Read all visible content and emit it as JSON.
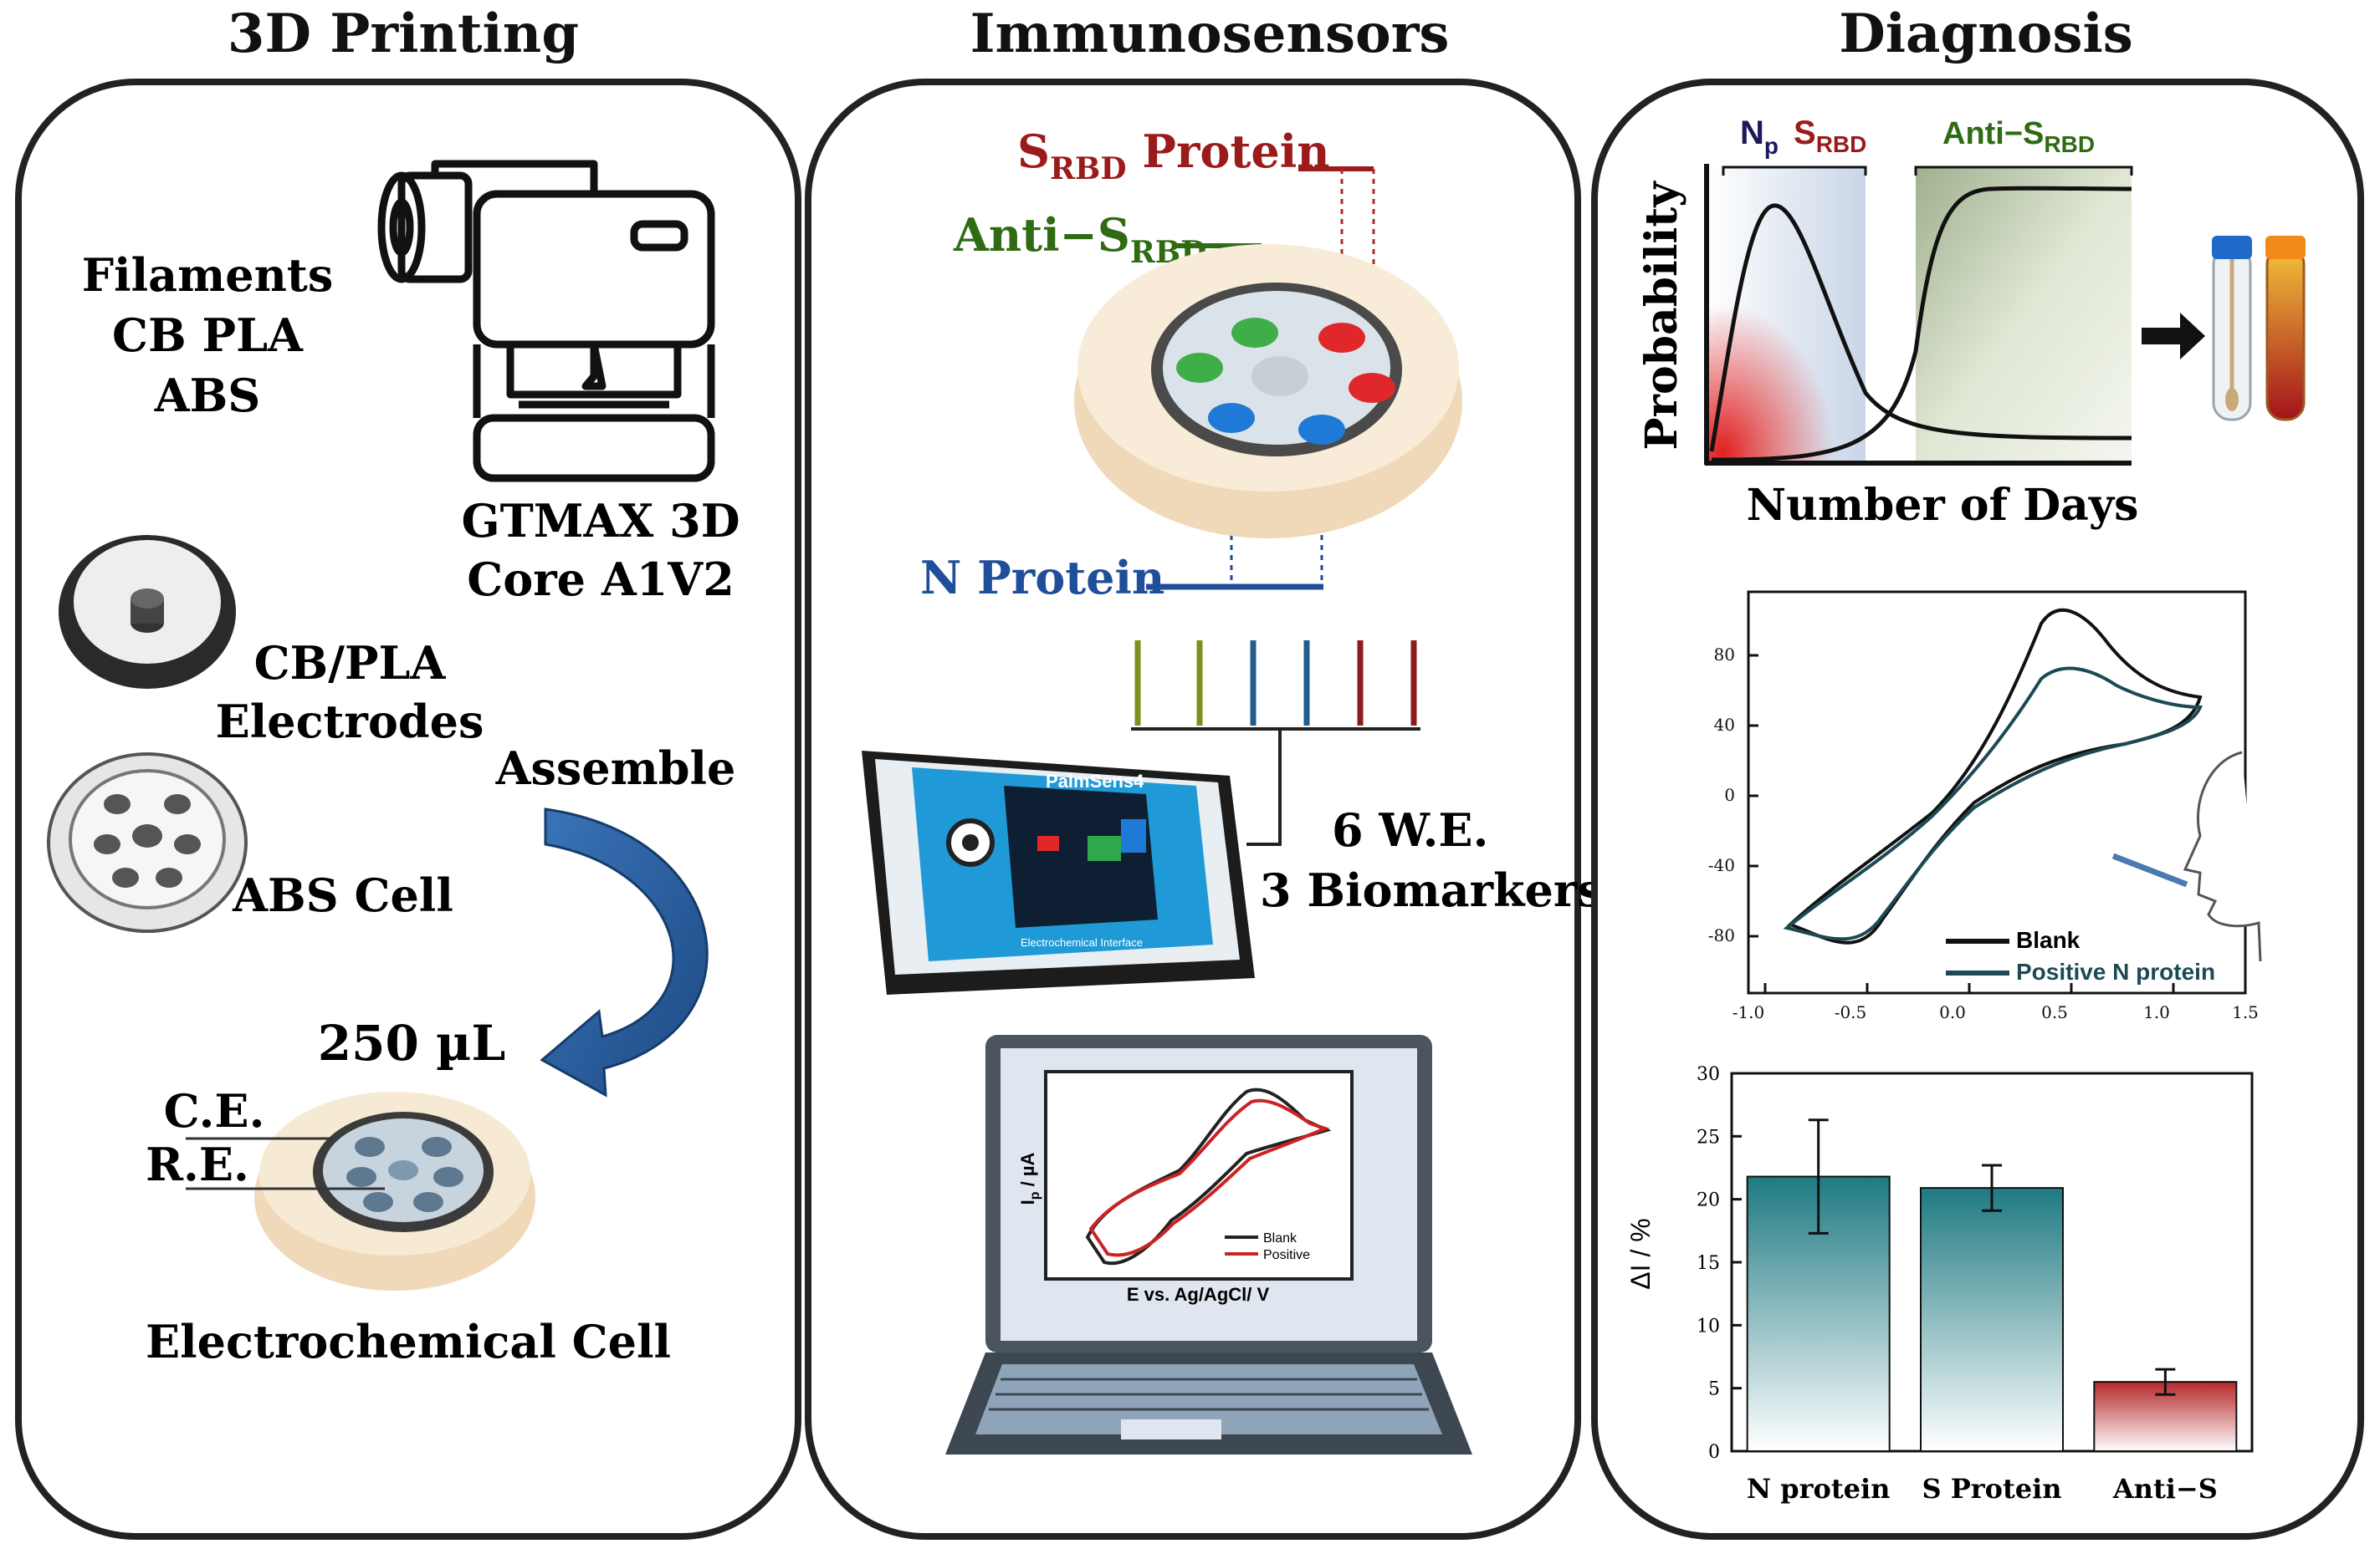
{
  "panels": {
    "printing": {
      "title": "3D Printing",
      "filaments": [
        "Filaments",
        "CB PLA",
        "ABS"
      ],
      "printer_label": [
        "GTMAX 3D",
        "Core A1V2"
      ],
      "electrodes_label": [
        "CB/PLA",
        "Electrodes"
      ],
      "assemble_label": "Assemble",
      "abs_cell_label": "ABS Cell",
      "volume_label": "250 µL",
      "ce_label": "C.E.",
      "re_label": "R.E.",
      "cell_label": "Electrochemical Cell"
    },
    "immunosensors": {
      "title": "Immunosensors",
      "srbd_protein": {
        "main": "S",
        "sub": "RBD",
        "rest": " Protein"
      },
      "anti_srbd": {
        "main": "Anti−S",
        "sub": "RBD"
      },
      "n_protein": "N Protein",
      "we_label": "6 W.E.",
      "biomarkers_label": "3 Biomarkers",
      "device_name": "PalmSens4",
      "device_footer": "Electrochemical Interface",
      "laptop_plot": {
        "ylabel_main": "I",
        "ylabel_sub": "p",
        "ylabel_rest": " / µA",
        "xlabel": "E vs. Ag/AgCl/ V",
        "legend": [
          "Blank",
          "Positive"
        ]
      }
    },
    "diagnosis": {
      "title": "Diagnosis",
      "prob_chart": {
        "np_label": {
          "main": "N",
          "sub": "p"
        },
        "srbd_label": {
          "main": "S",
          "sub": "RBD"
        },
        "anti_label": {
          "main": "Anti−S",
          "sub": "RBD"
        },
        "ylabel": "Probability",
        "xlabel": "Number  of Days"
      },
      "cv_chart": {
        "y_ticks": [
          "80",
          "40",
          "0",
          "-40",
          "-80"
        ],
        "x_ticks": [
          "-1.0",
          "-0.5",
          "0.0",
          "0.5",
          "1.0",
          "1.5"
        ],
        "legend": [
          "Blank",
          "Positive N protein"
        ]
      }
    }
  },
  "colors": {
    "srbd": "#9b1b1b",
    "anti": "#2e6b12",
    "nprot": "#1f4e9a",
    "teal": "#1f7a82",
    "red": "#b5282a",
    "arrow": "#2a5fa0"
  },
  "chart_data": {
    "type": "bar",
    "categories": [
      "N protein",
      "S Protein",
      "Anti−S"
    ],
    "values": [
      21.8,
      20.9,
      5.5
    ],
    "errors": [
      4.5,
      1.8,
      1.0
    ],
    "ylabel": "ΔI / %",
    "ylim": [
      0,
      30
    ],
    "y_ticks": [
      0,
      5,
      10,
      15,
      20,
      25,
      30
    ]
  }
}
